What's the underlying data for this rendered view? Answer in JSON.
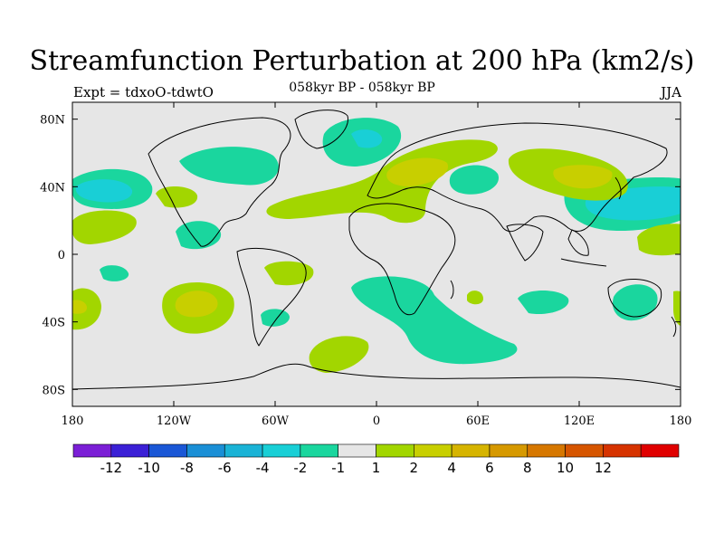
{
  "title": "Streamfunction Perturbation at 200 hPa (km2/s)",
  "subtitle": "058kyr BP - 058kyr BP",
  "left_label": "Expt = tdxoO-tdwtO",
  "right_label": "JJA",
  "lon_ticks": [
    {
      "lon": -180,
      "label": "180"
    },
    {
      "lon": -120,
      "label": "120W"
    },
    {
      "lon": -60,
      "label": "60W"
    },
    {
      "lon": 0,
      "label": "0"
    },
    {
      "lon": 60,
      "label": "60E"
    },
    {
      "lon": 120,
      "label": "120E"
    },
    {
      "lon": 180,
      "label": "180"
    }
  ],
  "lat_ticks": [
    {
      "lat": 80,
      "label": "80N"
    },
    {
      "lat": 40,
      "label": "40N"
    },
    {
      "lat": 0,
      "label": "0"
    },
    {
      "lat": -40,
      "label": "40S"
    },
    {
      "lat": -80,
      "label": "80S"
    }
  ],
  "colorbar": {
    "colors": [
      "#7b1fd6",
      "#3b20d6",
      "#1a57d6",
      "#1a8fd6",
      "#1ab3d6",
      "#19cfd6",
      "#1ad69e",
      "#e6e6e6",
      "#a2d600",
      "#c8cf00",
      "#d6b400",
      "#d69900",
      "#d67700",
      "#d65500",
      "#d63300",
      "#e00000"
    ],
    "labels": [
      "-12",
      "-10",
      "-8",
      "-6",
      "-4",
      "-2",
      "-1",
      "1",
      "2",
      "4",
      "6",
      "8",
      "10",
      "12"
    ]
  },
  "background_color": "#e6e6e6",
  "anomaly_regions": [
    {
      "name": "North Atlantic / Canada",
      "level": "-1",
      "color": "#1ad69e"
    },
    {
      "name": "Arctic / Greenland Sea",
      "level": "-1",
      "color": "#1ad69e"
    },
    {
      "name": "North Pacific",
      "level": "-2",
      "color": "#19cfd6"
    },
    {
      "name": "Western Pacific / Japan",
      "level": "-2",
      "color": "#19cfd6"
    },
    {
      "name": "Europe",
      "level": "2",
      "color": "#c8cf00"
    },
    {
      "name": "Central Asia",
      "level": "2",
      "color": "#c8cf00"
    },
    {
      "name": "South Pacific",
      "level": "2",
      "color": "#c8cf00"
    },
    {
      "name": "South Atlantic / Southern Ocean",
      "level": "-1",
      "color": "#1ad69e"
    }
  ]
}
